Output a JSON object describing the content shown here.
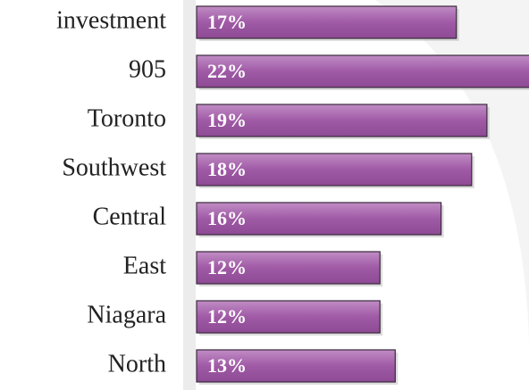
{
  "chart_data": {
    "type": "bar",
    "orientation": "horizontal",
    "categories": [
      "investment",
      "905",
      "Toronto",
      "Southwest",
      "Central",
      "East",
      "Niagara",
      "North"
    ],
    "values": [
      17,
      22,
      19,
      18,
      16,
      12,
      12,
      13
    ],
    "value_labels": [
      "17%",
      "22%",
      "19%",
      "18%",
      "16%",
      "12%",
      "12%",
      "13%"
    ],
    "color": "#a05aa6"
  }
}
